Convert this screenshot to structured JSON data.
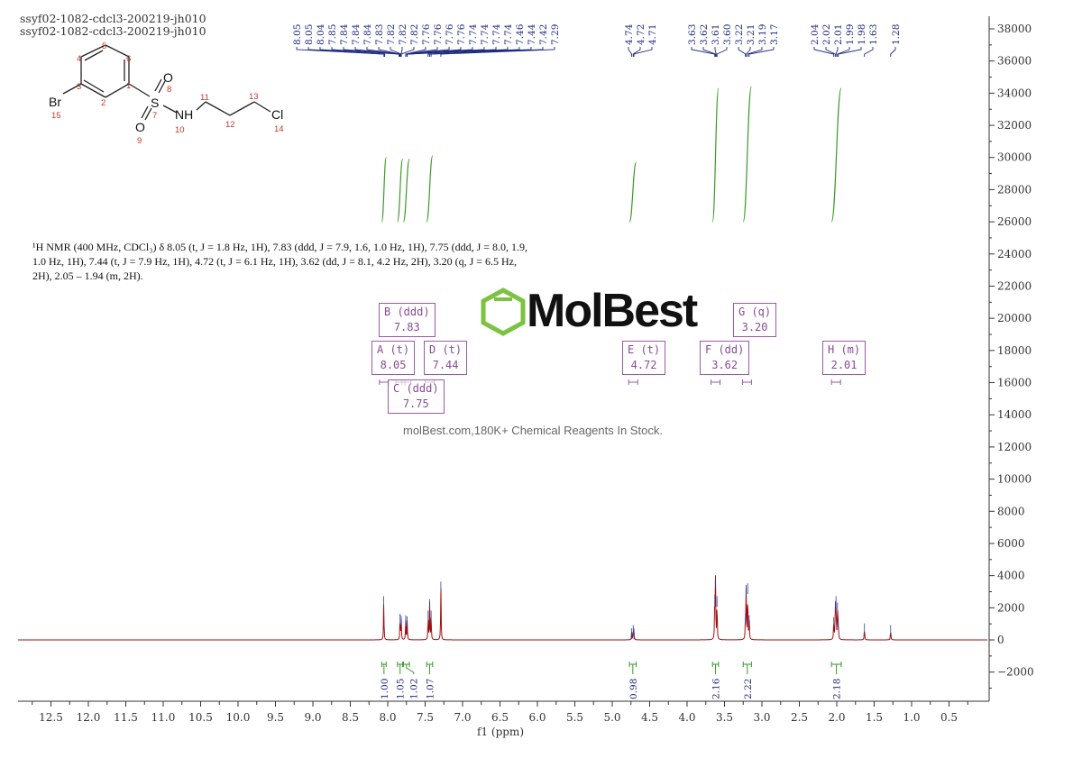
{
  "header": {
    "title_line1": "ssyf02-1082-cdcl3-200219-jh010",
    "title_line2": "ssyf02-1082-cdcl3-200219-jh010"
  },
  "structure": {
    "atoms": [
      "Br",
      "S",
      "O",
      "O",
      "NH",
      "Cl"
    ],
    "numbers": [
      "1",
      "2",
      "3",
      "4",
      "5",
      "6",
      "7",
      "8",
      "9",
      "10",
      "11",
      "12",
      "13",
      "14",
      "15"
    ]
  },
  "description": "¹H NMR (400 MHz, CDCl₃) δ 8.05 (t, J = 1.8 Hz, 1H), 7.83 (ddd, J = 7.9, 1.6, 1.0 Hz, 1H), 7.75 (ddd, J = 8.0, 1.9, 1.0 Hz, 1H), 7.44 (t, J = 7.9 Hz, 1H), 4.72 (t, J = 6.1 Hz, 1H), 3.62 (dd, J = 8.1, 4.2 Hz, 2H), 3.20 (q, J = 6.5 Hz, 2H), 2.05 – 1.94 (m, 2H).",
  "watermark": {
    "logo": "MolBest",
    "tagline": "molBest.com,180K+ Chemical Reagents In Stock."
  },
  "chart_data": {
    "type": "line",
    "xlabel": "f1 (ppm)",
    "xlim": [
      13.0,
      0.0
    ],
    "ylim": [
      -3800,
      38500
    ],
    "x_ticks": [
      "12.5",
      "12.0",
      "11.5",
      "11.0",
      "10.5",
      "10.0",
      "9.5",
      "9.0",
      "8.5",
      "8.0",
      "7.5",
      "7.0",
      "6.5",
      "6.0",
      "5.5",
      "5.0",
      "4.5",
      "4.0",
      "3.5",
      "3.0",
      "2.5",
      "2.0",
      "1.5",
      "1.0",
      "0.5"
    ],
    "y_ticks": [
      "38000",
      "36000",
      "34000",
      "32000",
      "30000",
      "28000",
      "26000",
      "24000",
      "22000",
      "20000",
      "18000",
      "16000",
      "14000",
      "12000",
      "10000",
      "8000",
      "6000",
      "4000",
      "2000",
      "0",
      "-2000"
    ],
    "peak_label_groups": [
      [
        "8.05",
        "8.05",
        "8.04",
        "7.85",
        "7.84",
        "7.84",
        "7.84",
        "7.83",
        "7.82",
        "7.82",
        "7.82",
        "7.76",
        "7.76",
        "7.76",
        "7.76",
        "7.74",
        "7.74",
        "7.74",
        "7.74",
        "7.46",
        "7.44",
        "7.42",
        "7.29"
      ],
      [
        "4.74",
        "4.72",
        "4.71"
      ],
      [
        "3.63",
        "3.62",
        "3.61",
        "3.60",
        "3.22",
        "3.21",
        "3.19",
        "3.17"
      ],
      [
        "2.04",
        "2.02",
        "2.01",
        "1.99",
        "1.98",
        "1.63"
      ],
      [
        "1.28"
      ]
    ],
    "peaks": [
      [
        8.053,
        2500
      ],
      [
        7.835,
        1400
      ],
      [
        7.82,
        1300
      ],
      [
        7.76,
        1300
      ],
      [
        7.74,
        1250
      ],
      [
        7.46,
        1600
      ],
      [
        7.44,
        2300
      ],
      [
        7.42,
        1600
      ],
      [
        7.29,
        3400
      ],
      [
        4.74,
        500
      ],
      [
        4.72,
        700
      ],
      [
        4.71,
        500
      ],
      [
        3.63,
        2600
      ],
      [
        3.62,
        3700
      ],
      [
        3.6,
        2500
      ],
      [
        3.22,
        1400
      ],
      [
        3.21,
        3200
      ],
      [
        3.19,
        3300
      ],
      [
        3.17,
        1300
      ],
      [
        2.04,
        1200
      ],
      [
        2.02,
        2200
      ],
      [
        2.01,
        2500
      ],
      [
        1.99,
        2100
      ],
      [
        1.98,
        1100
      ],
      [
        1.63,
        800
      ],
      [
        1.28,
        700
      ]
    ],
    "multiplets": [
      {
        "label": "A (t)",
        "shift": "8.05"
      },
      {
        "label": "B (ddd)",
        "shift": "7.83"
      },
      {
        "label": "C (ddd)",
        "shift": "7.75"
      },
      {
        "label": "D (t)",
        "shift": "7.44"
      },
      {
        "label": "E (t)",
        "shift": "4.72"
      },
      {
        "label": "F (dd)",
        "shift": "3.62"
      },
      {
        "label": "G (q)",
        "shift": "3.20"
      },
      {
        "label": "H (m)",
        "shift": "2.01"
      }
    ],
    "integrals": [
      {
        "from": 8.08,
        "to": 8.02,
        "value": "1.00",
        "top": 30000
      },
      {
        "from": 7.87,
        "to": 7.8,
        "value": "1.05",
        "top": 29900
      },
      {
        "from": 7.79,
        "to": 7.71,
        "value": "1.02",
        "top": 29900
      },
      {
        "from": 7.48,
        "to": 7.4,
        "value": "1.07",
        "top": 30100
      },
      {
        "from": 4.77,
        "to": 4.68,
        "value": "0.98",
        "top": 29700
      },
      {
        "from": 3.66,
        "to": 3.58,
        "value": "2.16",
        "top": 34300
      },
      {
        "from": 3.25,
        "to": 3.14,
        "value": "2.22",
        "top": 34400
      },
      {
        "from": 2.07,
        "to": 1.94,
        "value": "2.18",
        "top": 34300
      }
    ],
    "colors": {
      "spectrum": "#a01010",
      "peak_labels": "#1f2a80",
      "integrals": "#3a9a2a",
      "multiplet_box": "#9b5aa6",
      "logo_green": "#7dc242"
    }
  }
}
